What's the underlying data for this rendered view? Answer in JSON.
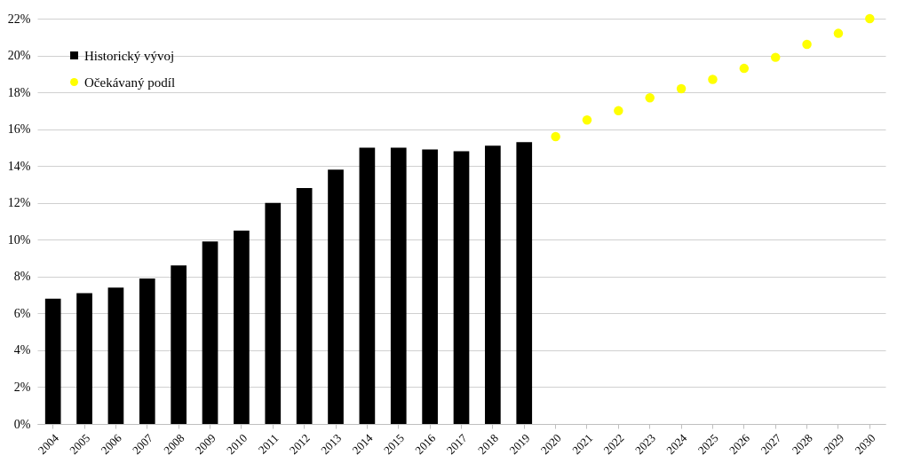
{
  "chart_data": {
    "type": "bar",
    "categories": [
      "2004",
      "2005",
      "2006",
      "2007",
      "2008",
      "2009",
      "2010",
      "2011",
      "2012",
      "2013",
      "2014",
      "2015",
      "2016",
      "2017",
      "2018",
      "2019",
      "2020",
      "2021",
      "2022",
      "2023",
      "2024",
      "2025",
      "2026",
      "2027",
      "2028",
      "2029",
      "2030"
    ],
    "series": [
      {
        "name": "Historický vývoj",
        "color": "#000000",
        "values": [
          6.8,
          7.1,
          7.4,
          7.9,
          8.6,
          9.9,
          10.5,
          12.0,
          12.8,
          13.8,
          15.0,
          15.0,
          14.9,
          14.8,
          15.1,
          15.3,
          null,
          null,
          null,
          null,
          null,
          null,
          null,
          null,
          null,
          null,
          null
        ]
      },
      {
        "name": "Očekávaný podíl",
        "type": "scatter",
        "color": "#ffff00",
        "values": [
          null,
          null,
          null,
          null,
          null,
          null,
          null,
          null,
          null,
          null,
          null,
          null,
          null,
          null,
          null,
          null,
          15.6,
          16.5,
          17.0,
          17.7,
          18.2,
          18.7,
          19.3,
          19.9,
          20.6,
          21.2,
          22.0
        ]
      }
    ],
    "ylim": [
      0,
      22
    ],
    "yticks": [
      {
        "value": 0,
        "label": "0%"
      },
      {
        "value": 2,
        "label": "2%"
      },
      {
        "value": 4,
        "label": "4%"
      },
      {
        "value": 6,
        "label": "6%"
      },
      {
        "value": 8,
        "label": "8%"
      },
      {
        "value": 10,
        "label": "10%"
      },
      {
        "value": 12,
        "label": "12%"
      },
      {
        "value": 14,
        "label": "14%"
      },
      {
        "value": 16,
        "label": "16%"
      },
      {
        "value": 18,
        "label": "18%"
      },
      {
        "value": 20,
        "label": "20%"
      },
      {
        "value": 22,
        "label": "22%"
      }
    ],
    "grid": "y",
    "legend": "top left",
    "marker": "circle"
  }
}
